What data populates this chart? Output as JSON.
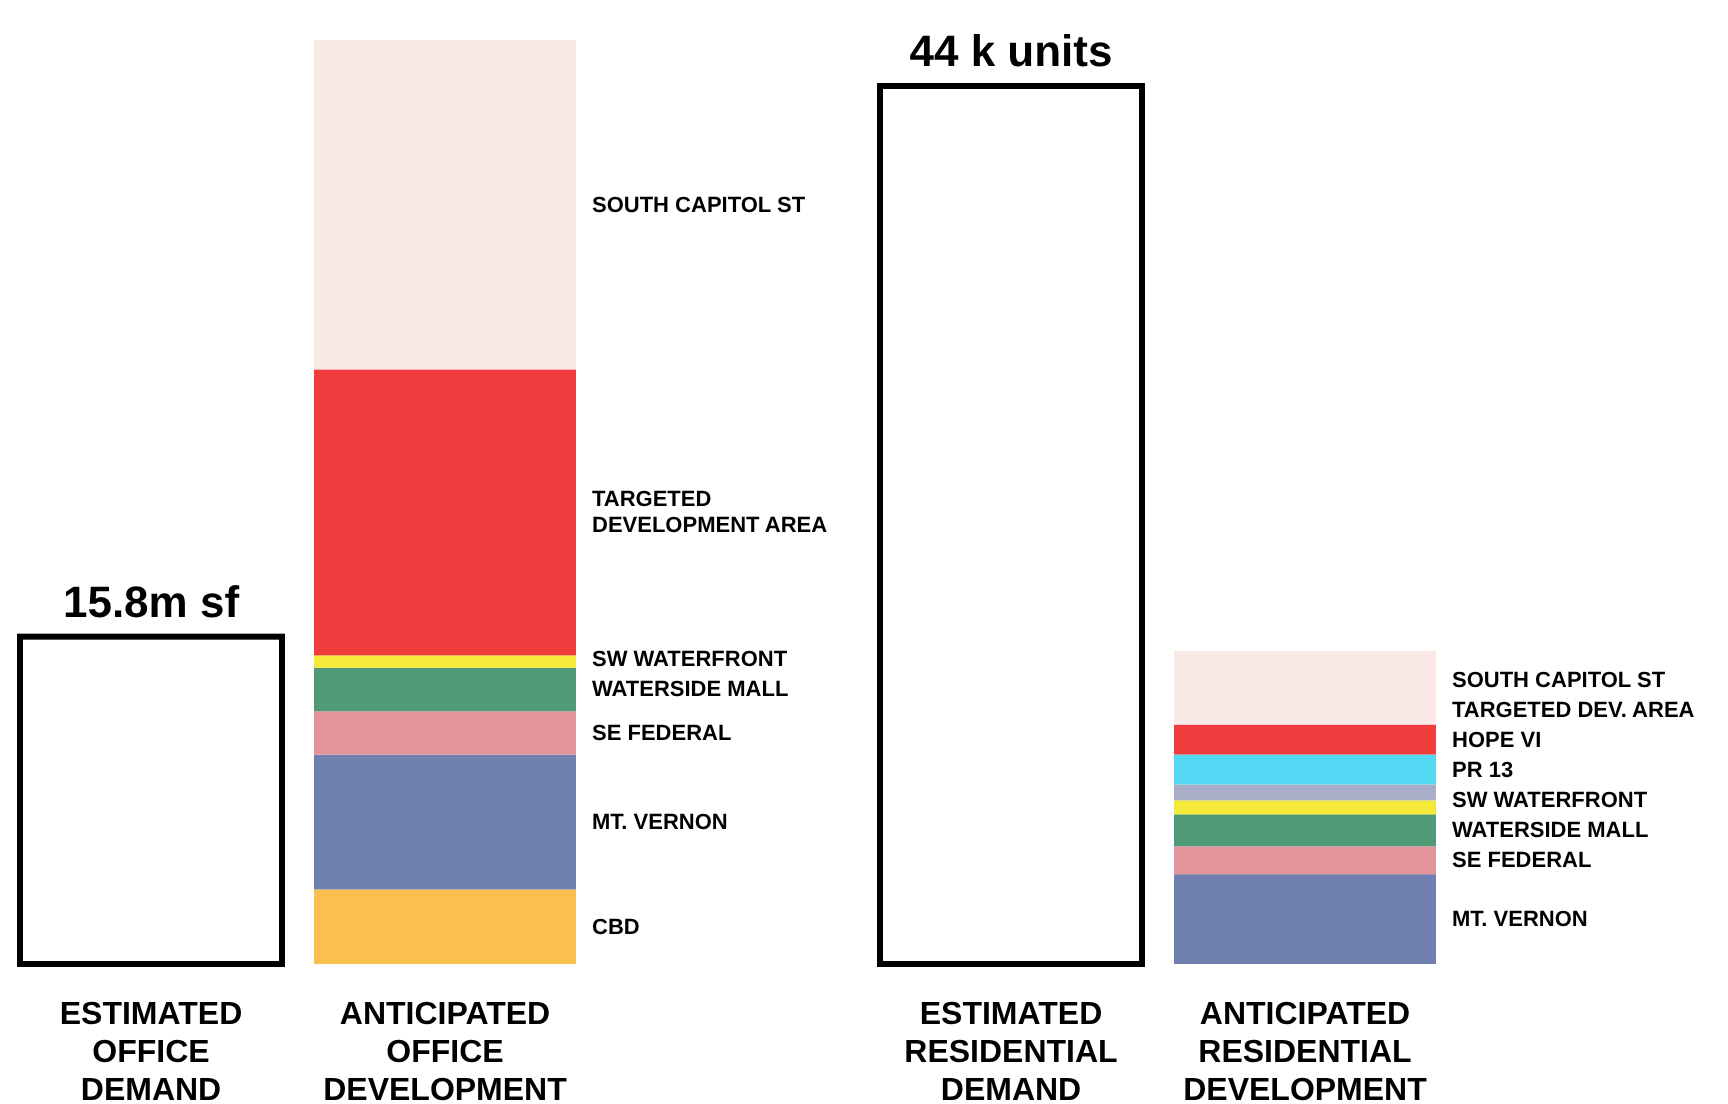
{
  "chart_data": [
    {
      "type": "bar",
      "stacked": true,
      "categories": [
        "ESTIMATED OFFICE DEMAND",
        "ANTICIPATED OFFICE DEVELOPMENT"
      ],
      "series": [
        {
          "color": "#ffffff",
          "values": [
            15.8,
            null
          ],
          "value_labels": [
            "15.8m sf",
            null
          ]
        },
        {
          "name": "CBD",
          "color": "#fbbf4f",
          "values": [
            null,
            3.6
          ]
        },
        {
          "name": "MT. VERNON",
          "color": "#6e7fb0",
          "values": [
            null,
            6.5
          ]
        },
        {
          "name": "SE FEDERAL",
          "color": "#e3939a",
          "values": [
            null,
            2.1
          ]
        },
        {
          "name": "WATERSIDE MALL",
          "color": "#4f9b78",
          "values": [
            null,
            2.1
          ]
        },
        {
          "name": "SW WATERFRONT",
          "color": "#f5e93a",
          "values": [
            null,
            0.6
          ]
        },
        {
          "name": "TARGETED DEVELOPMENT AREA",
          "color": "#f03c3c",
          "values": [
            null,
            13.8
          ]
        },
        {
          "name": "SOUTH CAPITOL ST",
          "color": "#fbe9e7",
          "values": [
            null,
            15.9
          ]
        }
      ]
    },
    {
      "type": "bar",
      "stacked": true,
      "categories": [
        "ESTIMATED RESIDENTIAL DEMAND",
        "ANTICIPATED RESIDENTIAL DEVELOPMENT"
      ],
      "series": [
        {
          "color": "#ffffff",
          "values": [
            44,
            null
          ],
          "value_labels": [
            "44 k units",
            null
          ]
        },
        {
          "name": "MT. VERNON",
          "color": "#6e7fb0",
          "values": [
            null,
            4.5
          ]
        },
        {
          "name": "SE FEDERAL",
          "color": "#e3939a",
          "values": [
            null,
            1.4
          ]
        },
        {
          "name": "WATERSIDE MALL",
          "color": "#4f9b78",
          "values": [
            null,
            1.6
          ]
        },
        {
          "name": "SW WATERFRONT",
          "color": "#f5e93a",
          "values": [
            null,
            0.7
          ]
        },
        {
          "name": "PR 13",
          "color": "#a9aec8",
          "values": [
            null,
            0.8
          ]
        },
        {
          "name": "HOPE VI",
          "color": "#52d8f2",
          "values": [
            null,
            1.5
          ]
        },
        {
          "name": "TARGETED DEV. AREA",
          "color": "#f03c3c",
          "values": [
            null,
            1.5
          ]
        },
        {
          "name": "SOUTH CAPITOL ST",
          "color": "#fbe9e7",
          "values": [
            null,
            3.7
          ]
        }
      ]
    }
  ]
}
